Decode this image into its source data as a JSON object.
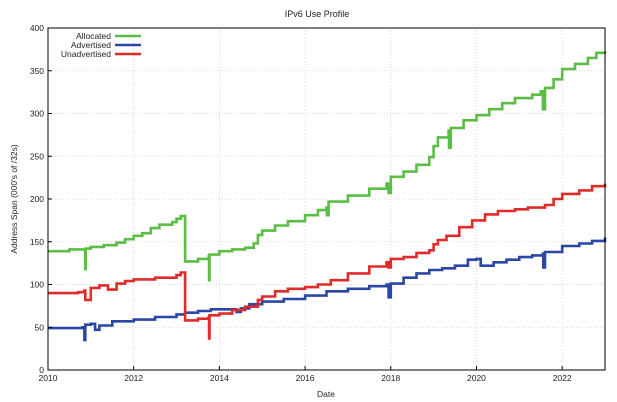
{
  "chart_data": {
    "type": "line",
    "title": "IPv6 Use Profile",
    "xlabel": "Date",
    "ylabel": "Address Span (000's of /32s)",
    "xlim": [
      2010,
      2023
    ],
    "ylim": [
      0,
      400
    ],
    "x_ticks": [
      "2010",
      "2012",
      "2014",
      "2016",
      "2018",
      "2020",
      "2022"
    ],
    "y_ticks": [
      "0",
      "50",
      "100",
      "150",
      "200",
      "250",
      "300",
      "350",
      "400"
    ],
    "grid": true,
    "legend_position": "top-left",
    "series": [
      {
        "name": "Allocated",
        "color": "#5bbd45",
        "points": [
          [
            2010.0,
            139
          ],
          [
            2010.5,
            141
          ],
          [
            2010.85,
            141
          ],
          [
            2010.87,
            118
          ],
          [
            2010.88,
            142
          ],
          [
            2011.0,
            144
          ],
          [
            2011.3,
            146
          ],
          [
            2011.6,
            149
          ],
          [
            2011.8,
            153
          ],
          [
            2012.0,
            157
          ],
          [
            2012.2,
            160
          ],
          [
            2012.4,
            166
          ],
          [
            2012.6,
            170
          ],
          [
            2012.9,
            173
          ],
          [
            2013.0,
            177
          ],
          [
            2013.1,
            180
          ],
          [
            2013.15,
            180
          ],
          [
            2013.2,
            127
          ],
          [
            2013.5,
            130
          ],
          [
            2013.75,
            133
          ],
          [
            2013.76,
            105
          ],
          [
            2013.77,
            135
          ],
          [
            2014.0,
            139
          ],
          [
            2014.3,
            141
          ],
          [
            2014.6,
            143
          ],
          [
            2014.8,
            148
          ],
          [
            2014.9,
            158
          ],
          [
            2015.0,
            163
          ],
          [
            2015.3,
            169
          ],
          [
            2015.6,
            174
          ],
          [
            2016.0,
            181
          ],
          [
            2016.3,
            187
          ],
          [
            2016.5,
            190
          ],
          [
            2016.51,
            181
          ],
          [
            2016.55,
            197
          ],
          [
            2017.0,
            204
          ],
          [
            2017.5,
            212
          ],
          [
            2017.9,
            218
          ],
          [
            2017.95,
            207
          ],
          [
            2018.0,
            226
          ],
          [
            2018.3,
            232
          ],
          [
            2018.6,
            240
          ],
          [
            2018.9,
            249
          ],
          [
            2019.0,
            262
          ],
          [
            2019.1,
            272
          ],
          [
            2019.35,
            280
          ],
          [
            2019.36,
            260
          ],
          [
            2019.4,
            283
          ],
          [
            2019.7,
            292
          ],
          [
            2020.0,
            298
          ],
          [
            2020.3,
            305
          ],
          [
            2020.6,
            312
          ],
          [
            2020.9,
            318
          ],
          [
            2021.3,
            322
          ],
          [
            2021.5,
            326
          ],
          [
            2021.55,
            305
          ],
          [
            2021.6,
            330
          ],
          [
            2021.8,
            340
          ],
          [
            2022.0,
            352
          ],
          [
            2022.3,
            358
          ],
          [
            2022.6,
            365
          ],
          [
            2022.8,
            371
          ],
          [
            2023.0,
            373
          ]
        ]
      },
      {
        "name": "Advertised",
        "color": "#2a47a6",
        "points": [
          [
            2010.0,
            49
          ],
          [
            2010.8,
            50
          ],
          [
            2010.85,
            35
          ],
          [
            2010.87,
            53
          ],
          [
            2011.0,
            54
          ],
          [
            2011.1,
            47
          ],
          [
            2011.2,
            52
          ],
          [
            2011.5,
            57
          ],
          [
            2012.0,
            59
          ],
          [
            2012.5,
            62
          ],
          [
            2013.0,
            65
          ],
          [
            2013.2,
            67
          ],
          [
            2013.5,
            69
          ],
          [
            2013.8,
            71
          ],
          [
            2014.0,
            71
          ],
          [
            2014.4,
            68
          ],
          [
            2014.5,
            72
          ],
          [
            2014.7,
            77
          ],
          [
            2015.0,
            80
          ],
          [
            2015.5,
            83
          ],
          [
            2016.0,
            87
          ],
          [
            2016.5,
            92
          ],
          [
            2017.0,
            95
          ],
          [
            2017.5,
            98
          ],
          [
            2017.9,
            100
          ],
          [
            2017.95,
            85
          ],
          [
            2018.0,
            101
          ],
          [
            2018.3,
            108
          ],
          [
            2018.6,
            113
          ],
          [
            2018.9,
            117
          ],
          [
            2019.2,
            119
          ],
          [
            2019.5,
            122
          ],
          [
            2019.8,
            129
          ],
          [
            2020.0,
            130
          ],
          [
            2020.1,
            122
          ],
          [
            2020.4,
            126
          ],
          [
            2020.7,
            129
          ],
          [
            2021.0,
            132
          ],
          [
            2021.3,
            134
          ],
          [
            2021.55,
            136
          ],
          [
            2021.56,
            120
          ],
          [
            2021.6,
            138
          ],
          [
            2022.0,
            145
          ],
          [
            2022.4,
            148
          ],
          [
            2022.7,
            151
          ],
          [
            2023.0,
            155
          ]
        ]
      },
      {
        "name": "Unadvertised",
        "color": "#e02b2b",
        "points": [
          [
            2010.0,
            90
          ],
          [
            2010.7,
            91
          ],
          [
            2010.85,
            93
          ],
          [
            2010.87,
            82
          ],
          [
            2011.0,
            96
          ],
          [
            2011.2,
            99
          ],
          [
            2011.4,
            94
          ],
          [
            2011.6,
            101
          ],
          [
            2011.8,
            104
          ],
          [
            2012.0,
            106
          ],
          [
            2012.5,
            108
          ],
          [
            2013.0,
            111
          ],
          [
            2013.1,
            114
          ],
          [
            2013.15,
            114
          ],
          [
            2013.2,
            58
          ],
          [
            2013.5,
            60
          ],
          [
            2013.75,
            62
          ],
          [
            2013.76,
            37
          ],
          [
            2013.77,
            64
          ],
          [
            2014.0,
            66
          ],
          [
            2014.3,
            70
          ],
          [
            2014.6,
            74
          ],
          [
            2014.9,
            82
          ],
          [
            2015.0,
            86
          ],
          [
            2015.3,
            92
          ],
          [
            2015.6,
            95
          ],
          [
            2016.0,
            97
          ],
          [
            2016.3,
            100
          ],
          [
            2016.6,
            105
          ],
          [
            2017.0,
            113
          ],
          [
            2017.5,
            121
          ],
          [
            2017.9,
            126
          ],
          [
            2017.95,
            120
          ],
          [
            2018.0,
            130
          ],
          [
            2018.3,
            132
          ],
          [
            2018.6,
            137
          ],
          [
            2018.9,
            140
          ],
          [
            2019.0,
            147
          ],
          [
            2019.1,
            152
          ],
          [
            2019.3,
            157
          ],
          [
            2019.6,
            167
          ],
          [
            2019.9,
            175
          ],
          [
            2020.2,
            182
          ],
          [
            2020.5,
            186
          ],
          [
            2020.9,
            188
          ],
          [
            2021.2,
            190
          ],
          [
            2021.6,
            193
          ],
          [
            2021.8,
            200
          ],
          [
            2022.0,
            206
          ],
          [
            2022.4,
            210
          ],
          [
            2022.7,
            215
          ],
          [
            2023.0,
            218
          ]
        ]
      }
    ]
  }
}
